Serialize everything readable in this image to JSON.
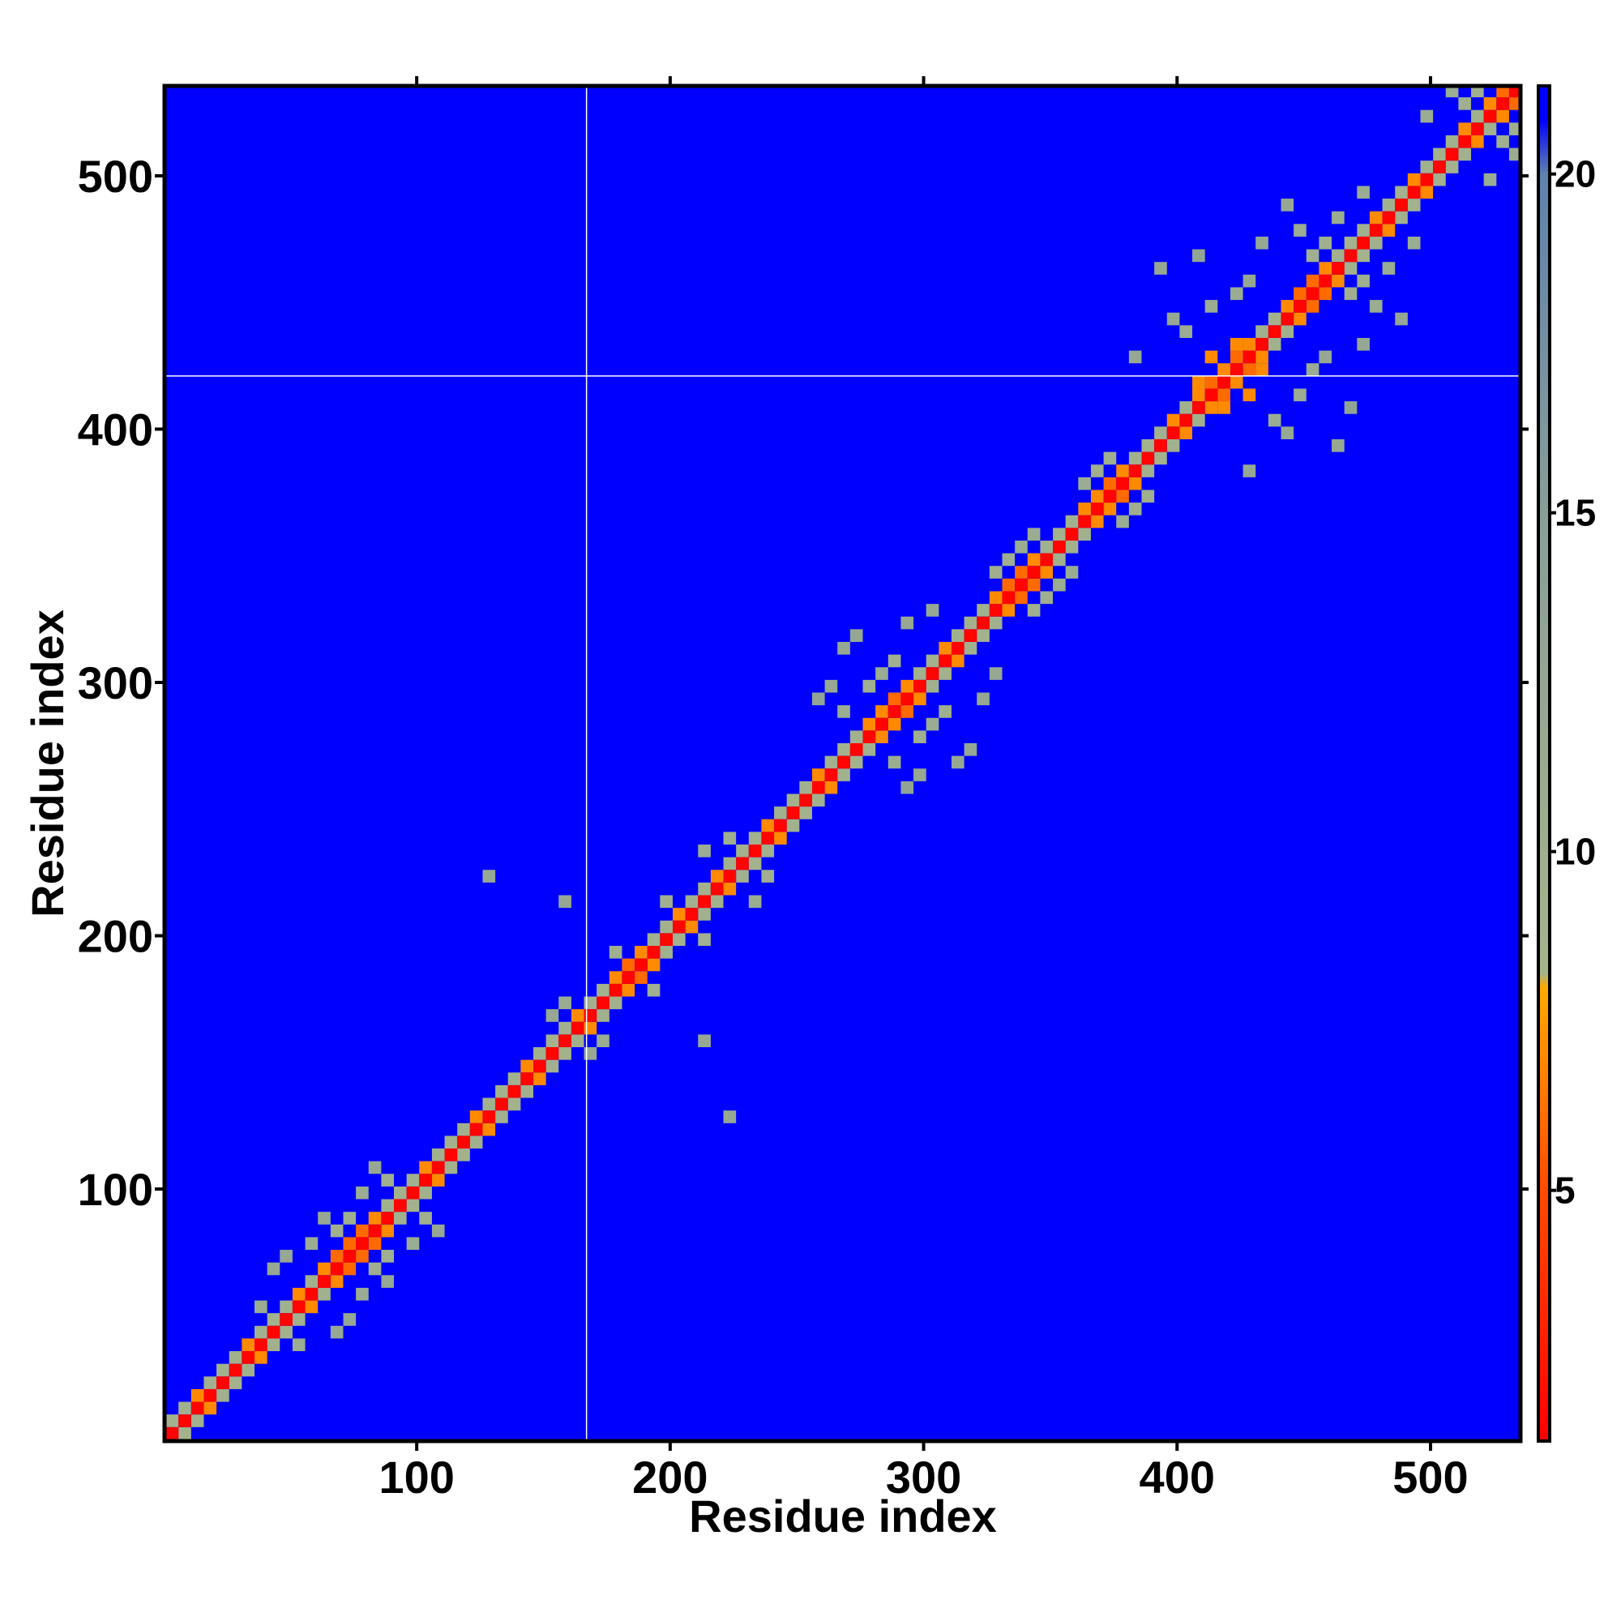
{
  "chart_data": {
    "type": "heatmap",
    "xlabel": "Residue index",
    "ylabel": "Residue index",
    "xlim": [
      0.5,
      535.5
    ],
    "ylim": [
      0.5,
      535.5
    ],
    "xticks": [
      100,
      200,
      300,
      400,
      500
    ],
    "yticks": [
      100,
      200,
      300,
      400,
      500
    ],
    "clim": [
      1.3,
      21.3
    ],
    "cticks": [
      5,
      10,
      15,
      20
    ],
    "colorscale": [
      {
        "value": 1.3,
        "color": "#ff0000"
      },
      {
        "value": 5,
        "color": "#ff4a00"
      },
      {
        "value": 8,
        "color": "#ffaa00"
      },
      {
        "value": 8.2,
        "color": "#a6b58c"
      },
      {
        "value": 15,
        "color": "#8a9e98"
      },
      {
        "value": 20,
        "color": "#5f82ad"
      },
      {
        "value": 20.8,
        "color": "#0000ff"
      },
      {
        "value": 21.3,
        "color": "#0000ff"
      }
    ],
    "background": 21.3,
    "cell_size": 5,
    "crosshair": {
      "x": 167,
      "y": 421
    },
    "diagonal": {
      "x": [
        1,
        6,
        11,
        16,
        21,
        26,
        31,
        36,
        41,
        46,
        51,
        56,
        61,
        66,
        71,
        76,
        81,
        86,
        91,
        96,
        101,
        106,
        111,
        116,
        121,
        126,
        131,
        136,
        141,
        146,
        151,
        156,
        161,
        166,
        171,
        176,
        181,
        186,
        191,
        196,
        201,
        206,
        211,
        216,
        221,
        226,
        231,
        236,
        241,
        246,
        251,
        256,
        261,
        266,
        271,
        276,
        281,
        286,
        291,
        296,
        301,
        306,
        311,
        316,
        321,
        326,
        331,
        336,
        341,
        346,
        351,
        356,
        361,
        366,
        371,
        376,
        381,
        386,
        391,
        396,
        401,
        406,
        411,
        416,
        421,
        426,
        431,
        436,
        441,
        446,
        451,
        456,
        461,
        466,
        471,
        476,
        481,
        486,
        491,
        496,
        501,
        506,
        511,
        516,
        521,
        526,
        531
      ],
      "values": [
        1.5,
        1.5,
        1.5,
        1.5,
        1.5,
        1.5,
        1.5,
        1.5,
        1.5,
        1.5,
        1.5,
        1.5,
        1.5,
        1.5,
        1.5,
        1.5,
        1.5,
        1.5,
        1.5,
        1.5,
        1.5,
        1.5,
        1.5,
        1.5,
        1.5,
        1.5,
        1.5,
        1.5,
        1.5,
        1.5,
        1.5,
        1.5,
        1.5,
        1.5,
        1.5,
        1.5,
        1.5,
        1.5,
        1.5,
        1.5,
        1.5,
        1.5,
        1.5,
        1.5,
        1.5,
        1.5,
        1.5,
        1.5,
        1.5,
        1.5,
        1.5,
        1.5,
        1.5,
        1.5,
        1.5,
        1.5,
        1.5,
        1.5,
        1.5,
        1.5,
        1.5,
        1.5,
        1.5,
        1.5,
        1.5,
        1.5,
        1.5,
        1.5,
        1.5,
        1.5,
        1.5,
        1.5,
        1.5,
        1.5,
        1.5,
        1.5,
        1.5,
        1.5,
        1.5,
        1.5,
        1.5,
        1.5,
        1.5,
        1.5,
        1.5,
        1.5,
        1.5,
        1.5,
        1.5,
        1.5,
        1.5,
        1.5,
        1.5,
        1.5,
        1.5,
        1.5,
        1.5,
        1.5,
        1.5,
        1.5,
        1.5,
        1.5,
        1.5,
        1.5,
        1.5,
        1.5,
        1.5
      ],
      "band": [
        9,
        9.5,
        7,
        9.5,
        9,
        9.5,
        7,
        9.5,
        9,
        9.5,
        7,
        9.5,
        7,
        6,
        6,
        6,
        7,
        9.5,
        9,
        9.5,
        7,
        9.5,
        9,
        9.5,
        7,
        9.5,
        9,
        9.5,
        7,
        9.5,
        9,
        9.5,
        7,
        9.5,
        9,
        7,
        6,
        7,
        9.5,
        9,
        7,
        9.5,
        9,
        7,
        9.5,
        9,
        9.5,
        7,
        9.5,
        9,
        9.5,
        7,
        9.5,
        9,
        9.5,
        7,
        7,
        6,
        7,
        9.5,
        9,
        7,
        9.5,
        9,
        9.5,
        7,
        6,
        6,
        7,
        9.5,
        9,
        9.5,
        7,
        7,
        6,
        7,
        9.5,
        9,
        9.5,
        7,
        9.5,
        7,
        6,
        7,
        6,
        7,
        9.5,
        9,
        7,
        6,
        6,
        7,
        9.5,
        9,
        9.5,
        7,
        9.5,
        9,
        7,
        9.5,
        9,
        9.5,
        7,
        9.5,
        7,
        6,
        7
      ]
    },
    "cells": [
      [
        81,
        66,
        10
      ],
      [
        86,
        71,
        10
      ],
      [
        76,
        56,
        11
      ],
      [
        96,
        76,
        11
      ],
      [
        71,
        46,
        12
      ],
      [
        86,
        61,
        12
      ],
      [
        101,
        86,
        10
      ],
      [
        106,
        81,
        12
      ],
      [
        66,
        41,
        12
      ],
      [
        51,
        36,
        11
      ],
      [
        171,
        156,
        11
      ],
      [
        166,
        151,
        12
      ],
      [
        191,
        176,
        10
      ],
      [
        211,
        196,
        10
      ],
      [
        236,
        221,
        10
      ],
      [
        231,
        211,
        11
      ],
      [
        221,
        126,
        12
      ],
      [
        211,
        156,
        12
      ],
      [
        296,
        276,
        10
      ],
      [
        301,
        281,
        11
      ],
      [
        306,
        286,
        10
      ],
      [
        316,
        271,
        12
      ],
      [
        311,
        266,
        12
      ],
      [
        321,
        291,
        12
      ],
      [
        296,
        261,
        12
      ],
      [
        286,
        266,
        11
      ],
      [
        326,
        301,
        12
      ],
      [
        291,
        256,
        13
      ],
      [
        341,
        326,
        10
      ],
      [
        346,
        331,
        10
      ],
      [
        351,
        336,
        11
      ],
      [
        356,
        341,
        11
      ],
      [
        381,
        366,
        10
      ],
      [
        386,
        371,
        10
      ],
      [
        376,
        361,
        11
      ],
      [
        426,
        411,
        7
      ],
      [
        431,
        421,
        7
      ],
      [
        416,
        406,
        7
      ],
      [
        436,
        401,
        11
      ],
      [
        441,
        396,
        12
      ],
      [
        446,
        411,
        11
      ],
      [
        451,
        421,
        11
      ],
      [
        461,
        391,
        12
      ],
      [
        456,
        426,
        12
      ],
      [
        426,
        381,
        12
      ],
      [
        466,
        406,
        13
      ],
      [
        471,
        431,
        12
      ],
      [
        466,
        451,
        10
      ],
      [
        471,
        456,
        10
      ],
      [
        476,
        446,
        11
      ],
      [
        481,
        461,
        11
      ],
      [
        486,
        441,
        12
      ],
      [
        491,
        471,
        11
      ],
      [
        526,
        511,
        10
      ],
      [
        531,
        516,
        10
      ],
      [
        531,
        506,
        11
      ],
      [
        521,
        496,
        11
      ]
    ]
  }
}
